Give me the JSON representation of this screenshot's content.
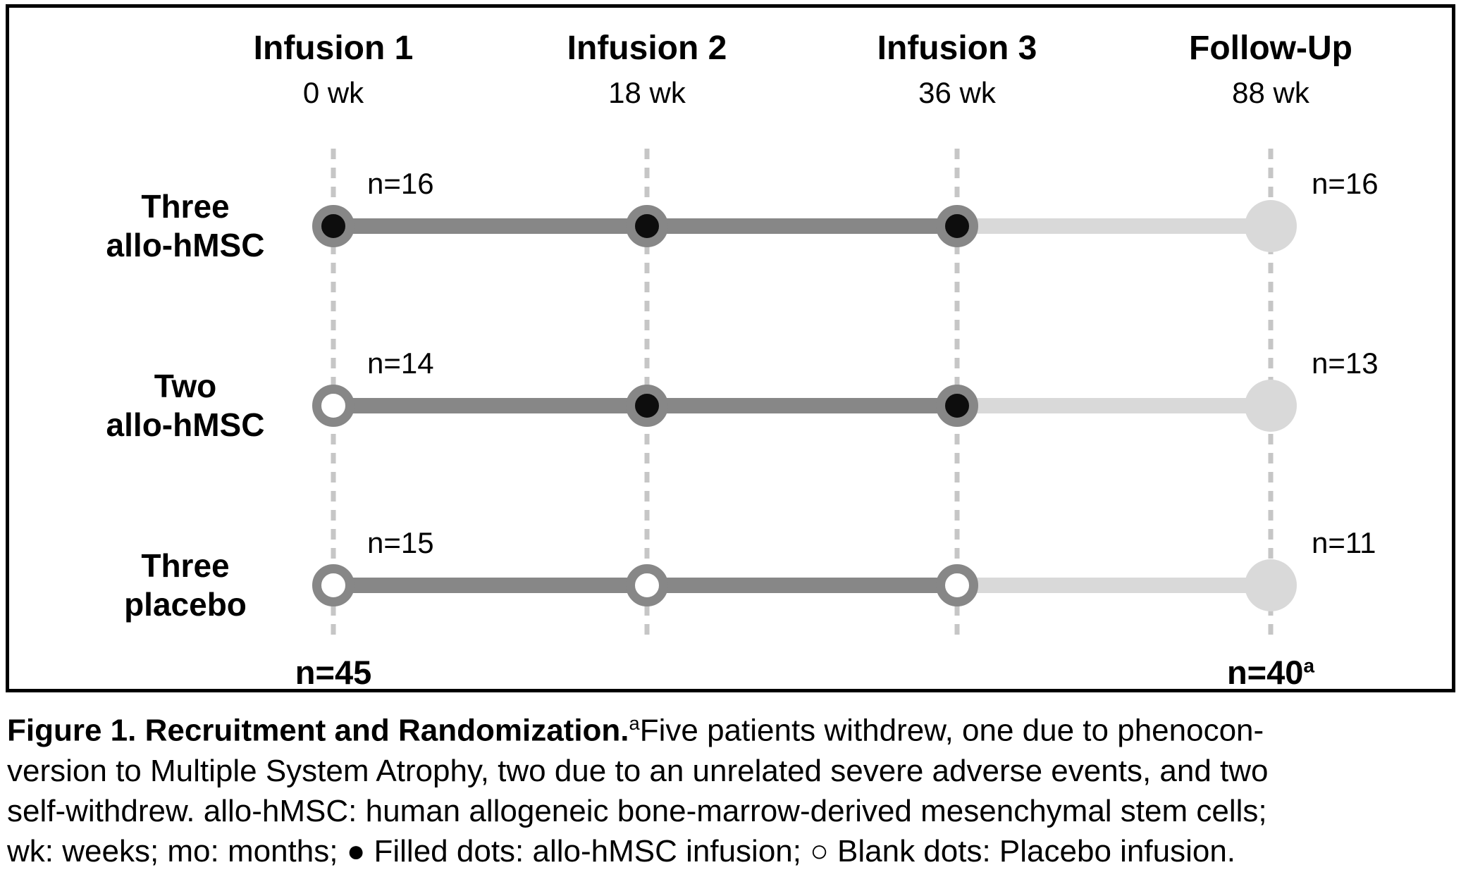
{
  "figure": {
    "columns": [
      {
        "title": "Infusion 1",
        "time": "0 wk"
      },
      {
        "title": "Infusion 2",
        "time": "18 wk"
      },
      {
        "title": "Infusion 3",
        "time": "36 wk"
      },
      {
        "title": "Follow-Up",
        "time": "88 wk"
      }
    ],
    "rows": [
      {
        "label_line1": "Three",
        "label_line2": "allo-hMSC",
        "n_start": "n=16",
        "n_end": "n=16",
        "dots": [
          "filled",
          "filled",
          "filled",
          "followup"
        ]
      },
      {
        "label_line1": "Two",
        "label_line2": "allo-hMSC",
        "n_start": "n=14",
        "n_end": "n=13",
        "dots": [
          "open",
          "filled",
          "filled",
          "followup"
        ]
      },
      {
        "label_line1": "Three",
        "label_line2": "placebo",
        "n_start": "n=15",
        "n_end": "n=11",
        "dots": [
          "open",
          "open",
          "open",
          "followup"
        ]
      }
    ],
    "totals": {
      "start": "n=45",
      "end": "n=40",
      "end_superscript": "a"
    },
    "colors": {
      "dark_line": "#878787",
      "light_line": "#d9d9d9",
      "ring": "#878787",
      "filled_center": "#0d0d0d",
      "open_center": "#ffffff",
      "followup_dot": "#d9d9d9",
      "dashed_line": "#c6c6c6"
    }
  },
  "caption": {
    "lines": [
      {
        "bold": "Figure 1. Recruitment and Randomization.",
        "sup": "a",
        "text": "Five patients withdrew, one due to phenocon-"
      },
      {
        "text": "version to Multiple System Atrophy, two due to an unrelated severe adverse events, and two"
      },
      {
        "text": "self-withdrew. allo-hMSC: human allogeneic bone-marrow-derived mesenchymal stem cells;"
      },
      {
        "text": "wk: weeks; mo: months; ● Filled dots: allo-hMSC infusion; ○ Blank dots: Placebo infusion."
      }
    ]
  }
}
